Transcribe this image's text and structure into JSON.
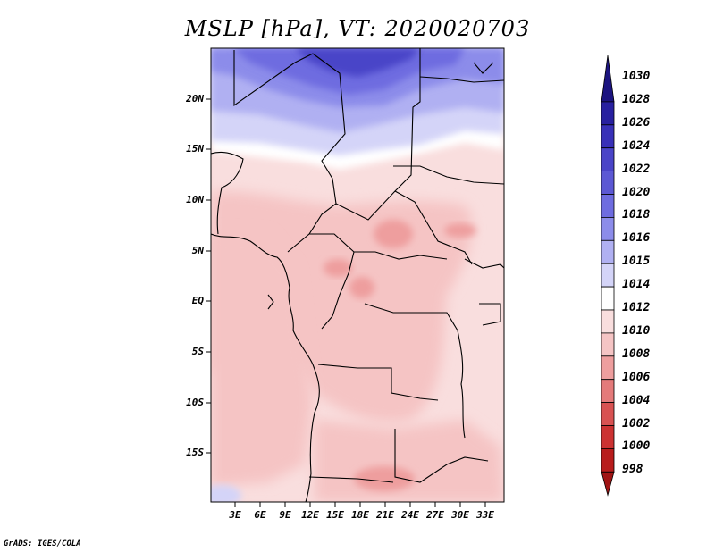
{
  "title": "MSLP [hPa], VT: 2020020703",
  "footer": "GrADS: IGES/COLA",
  "map": {
    "lat_labels": [
      "20N",
      "15N",
      "10N",
      "5N",
      "EQ",
      "5S",
      "10S",
      "15S"
    ],
    "lon_labels": [
      "3E",
      "6E",
      "9E",
      "12E",
      "15E",
      "18E",
      "21E",
      "24E",
      "27E",
      "30E",
      "33E"
    ]
  },
  "colorbar": {
    "labels": [
      "1030",
      "1028",
      "1026",
      "1024",
      "1022",
      "1020",
      "1018",
      "1016",
      "1015",
      "1014",
      "1012",
      "1010",
      "1008",
      "1006",
      "1004",
      "1002",
      "1000",
      "998"
    ],
    "colors": [
      "#1c1480",
      "#2820a0",
      "#3830b8",
      "#4a44c8",
      "#5c58d4",
      "#6e6ce0",
      "#8c8cea",
      "#b0b0f2",
      "#d4d4f8",
      "#ffffff",
      "#f9dede",
      "#f5c4c4",
      "#ee9e9e",
      "#e47a7a",
      "#d85252",
      "#cc3232",
      "#b81c1c",
      "#a01414"
    ]
  }
}
